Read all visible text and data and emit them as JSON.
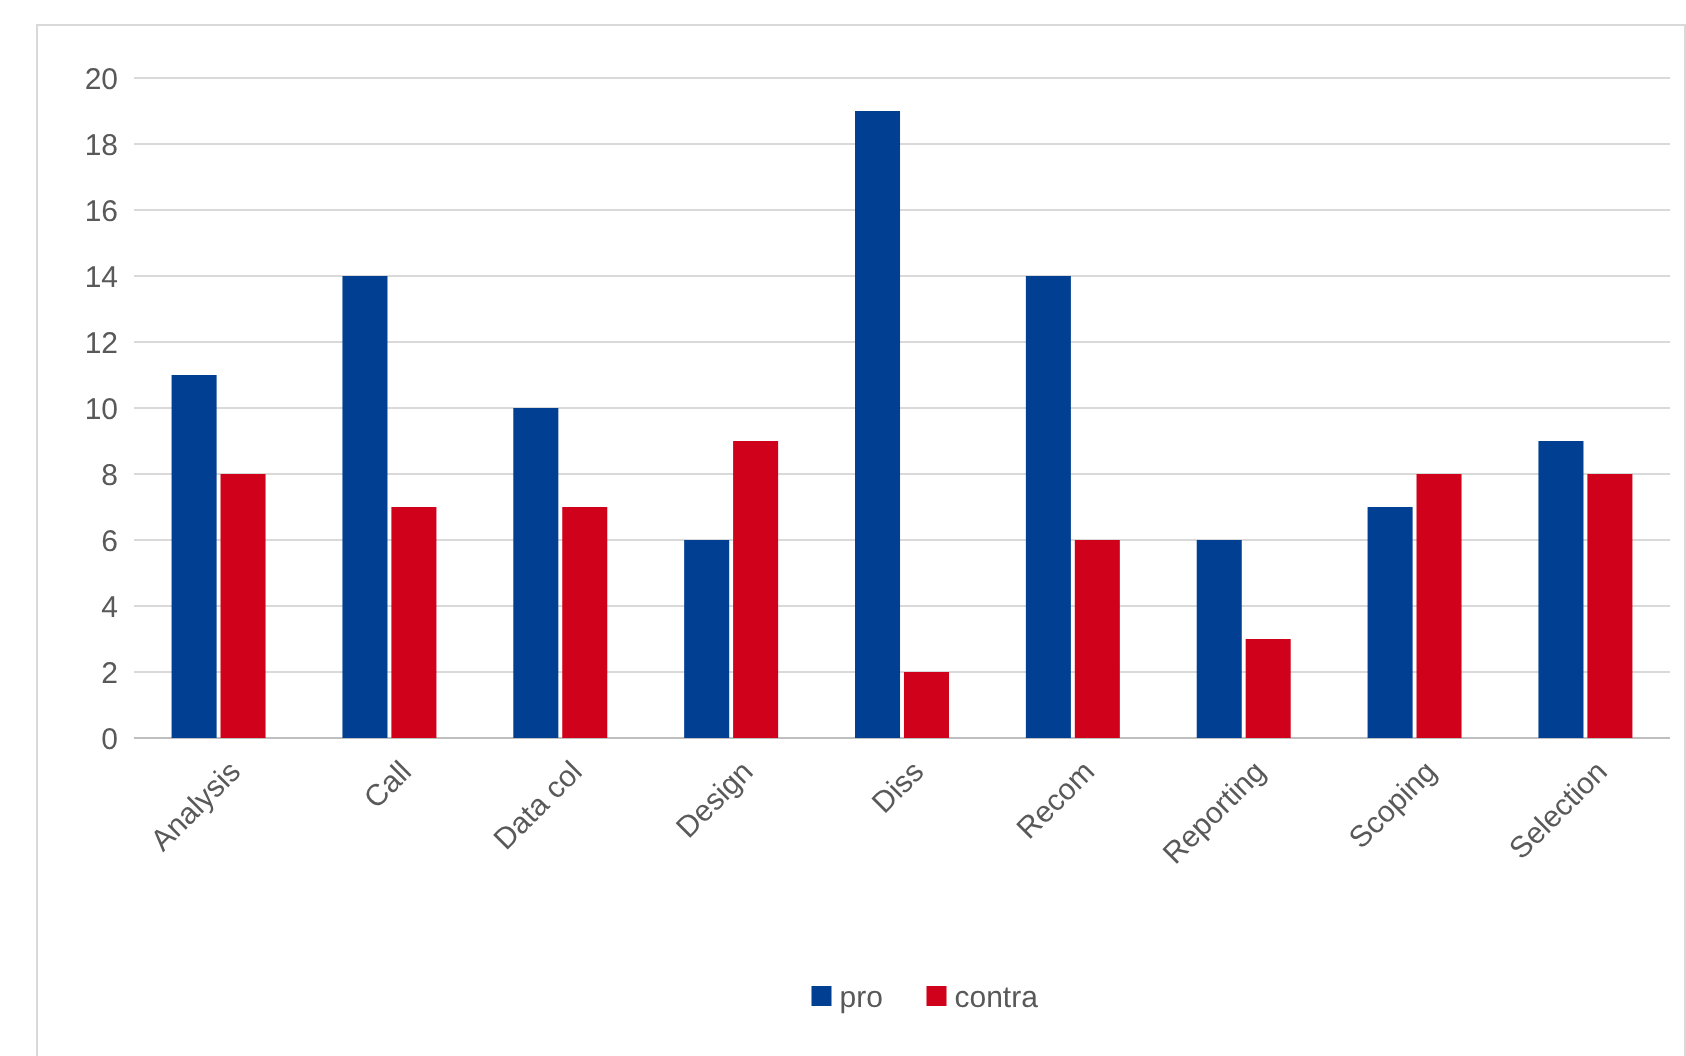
{
  "chart_data": {
    "type": "bar",
    "categories": [
      "Analysis",
      "Call",
      "Data col",
      "Design",
      "Diss",
      "Recom",
      "Reporting",
      "Scoping",
      "Selection"
    ],
    "series": [
      {
        "name": "pro",
        "color": "#003f91",
        "values": [
          11,
          14,
          10,
          6,
          19,
          14,
          6,
          7,
          9
        ]
      },
      {
        "name": "contra",
        "color": "#d0021b",
        "values": [
          8,
          7,
          7,
          9,
          2,
          6,
          3,
          8,
          8
        ]
      }
    ],
    "ylim": [
      0,
      20
    ],
    "yticks": [
      0,
      2,
      4,
      6,
      8,
      10,
      12,
      14,
      16,
      18,
      20
    ],
    "grid": "y",
    "legend": "bottom"
  }
}
